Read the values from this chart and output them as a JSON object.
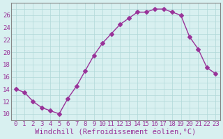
{
  "x": [
    0,
    1,
    2,
    3,
    4,
    5,
    6,
    7,
    8,
    9,
    10,
    11,
    12,
    13,
    14,
    15,
    16,
    17,
    18,
    19,
    20,
    21,
    22,
    23
  ],
  "y": [
    14,
    13.5,
    12,
    11,
    10.5,
    10,
    12.5,
    14.5,
    17,
    19.5,
    21.5,
    23,
    24.5,
    25.5,
    26.5,
    26.5,
    27,
    27,
    26.5,
    26,
    22.5,
    20.5,
    17.5,
    16.5
  ],
  "line_color": "#993399",
  "marker": "D",
  "markersize": 3,
  "linewidth": 1,
  "bg_color": "#d8f0f0",
  "grid_color": "#b0d8d8",
  "xlabel": "Windchill (Refroidissement éolien,°C)",
  "xlabel_fontsize": 7.5,
  "xlabel_color": "#993399",
  "tick_color": "#993399",
  "tick_fontsize": 6.5,
  "ylim": [
    9,
    28
  ],
  "xlim": [
    -0.5,
    23.5
  ],
  "yticks": [
    10,
    12,
    14,
    16,
    18,
    20,
    22,
    24,
    26
  ],
  "xticks": [
    0,
    1,
    2,
    3,
    4,
    5,
    6,
    7,
    8,
    9,
    10,
    11,
    12,
    13,
    14,
    15,
    16,
    17,
    18,
    19,
    20,
    21,
    22,
    23
  ]
}
